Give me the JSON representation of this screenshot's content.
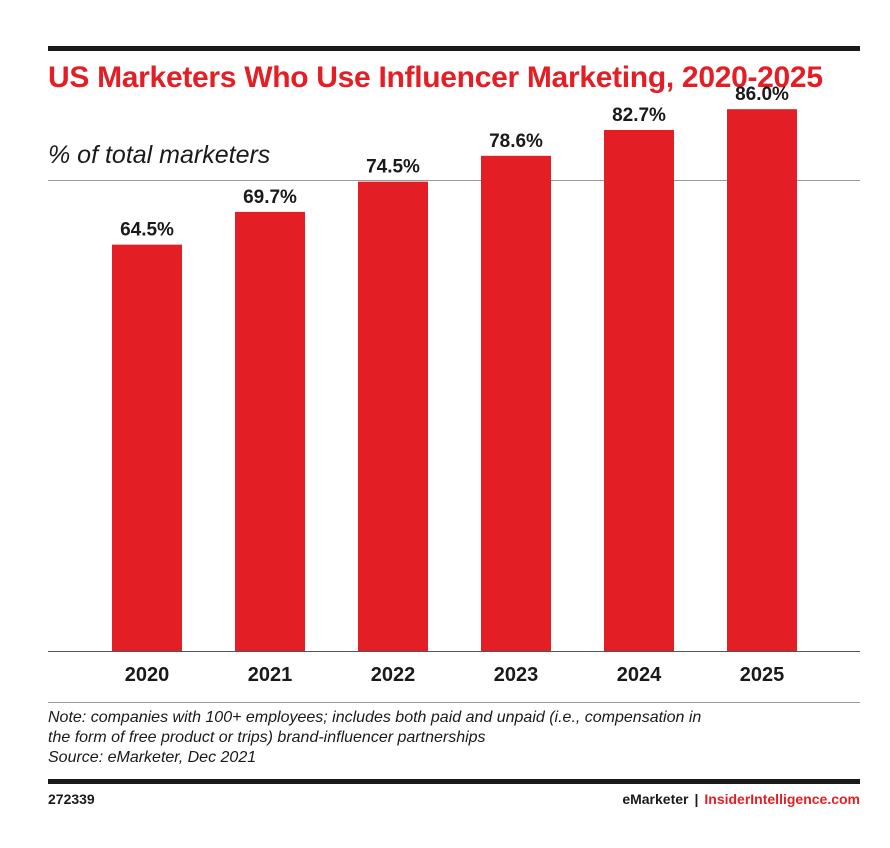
{
  "chart_data": {
    "type": "bar",
    "title": "US Marketers Who Use Influencer Marketing, 2020-2025",
    "subtitle": "% of total marketers",
    "categories": [
      "2020",
      "2021",
      "2022",
      "2023",
      "2024",
      "2025"
    ],
    "values": [
      64.5,
      69.7,
      74.5,
      78.6,
      82.7,
      86.0
    ],
    "value_labels": [
      "64.5%",
      "69.7%",
      "74.5%",
      "78.6%",
      "82.7%",
      "86.0%"
    ],
    "xlabel": "",
    "ylabel": "",
    "ylim": [
      0,
      100
    ],
    "grid": false,
    "legend": "none",
    "bar_color": "#e31e24"
  },
  "notes": {
    "line1": "Note: companies with 100+ employees; includes both paid and unpaid (i.e., compensation in",
    "line2": "the form of free product or trips) brand-influencer partnerships",
    "source": "Source: eMarketer, Dec 2021"
  },
  "footer": {
    "chart_id": "272339",
    "brand_left": "eMarketer",
    "separator": "|",
    "brand_right": "InsiderIntelligence.com"
  },
  "colors": {
    "accent": "#e31e24",
    "text": "#1a1a1a"
  }
}
